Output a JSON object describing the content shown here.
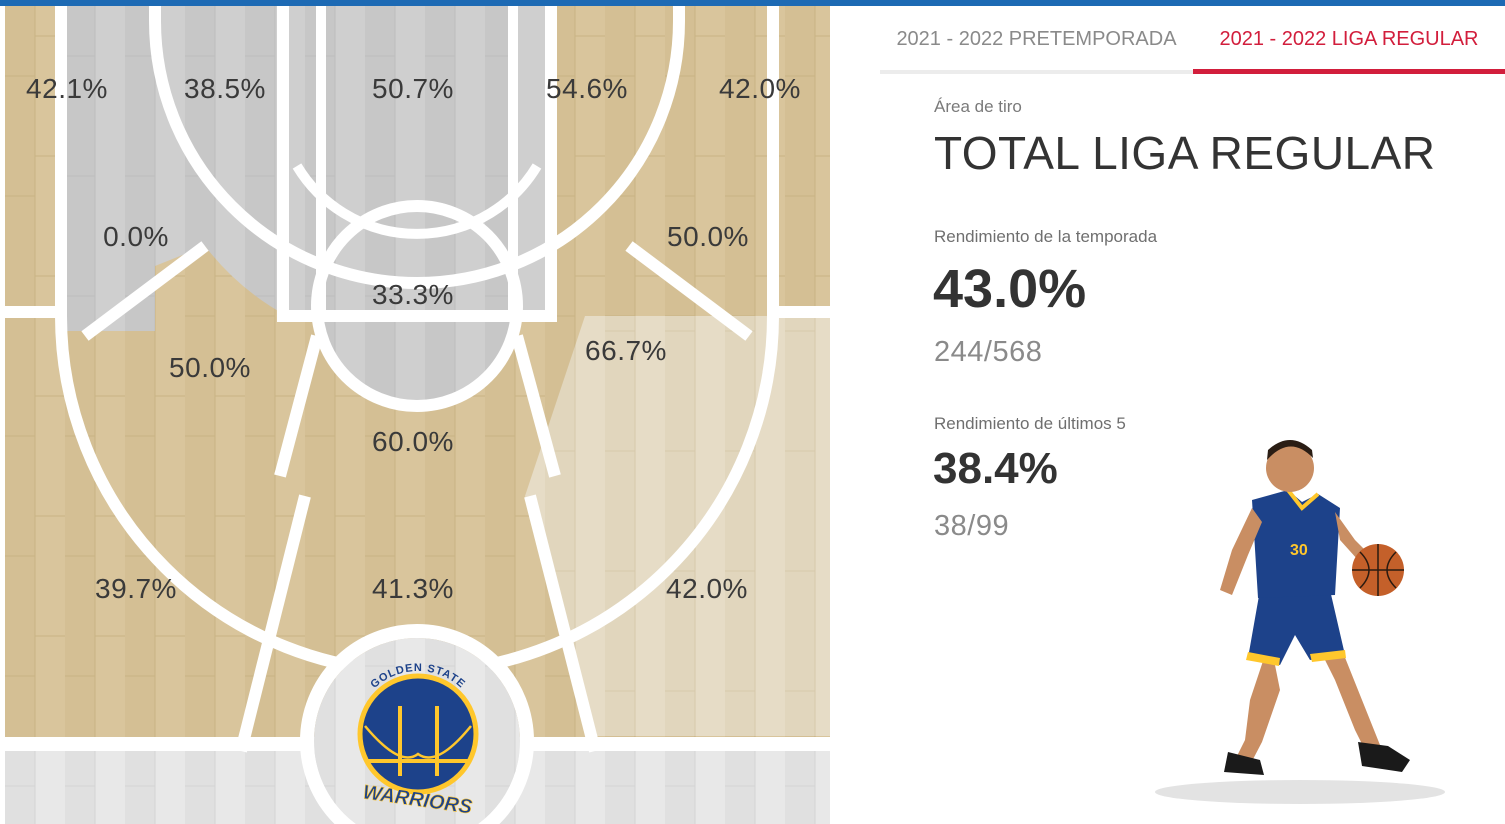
{
  "tabs": [
    {
      "label": "2021 - 2022 PRETEMPORADA",
      "active": false
    },
    {
      "label": "2021 - 2022 LIGA REGULAR",
      "active": true
    }
  ],
  "panel": {
    "area_label": "Área de tiro",
    "area_title": "TOTAL LIGA REGULAR",
    "season": {
      "label": "Rendimiento de la temporada",
      "pct": "43.0%",
      "ratio": "244/568"
    },
    "last5": {
      "label": "Rendimiento de últimos 5",
      "pct": "38.4%",
      "ratio": "38/99"
    }
  },
  "zones": [
    {
      "label": "42.1%"
    },
    {
      "label": "38.5%"
    },
    {
      "label": "50.7%"
    },
    {
      "label": "54.6%"
    },
    {
      "label": "42.0%"
    },
    {
      "label": "0.0%"
    },
    {
      "label": "50.0%"
    },
    {
      "label": "33.3%"
    },
    {
      "label": "50.0%"
    },
    {
      "label": "66.7%"
    },
    {
      "label": "60.0%"
    },
    {
      "label": "39.7%"
    },
    {
      "label": "41.3%"
    },
    {
      "label": "42.0%"
    }
  ],
  "logo": {
    "top_text": "GOLDEN STATE",
    "bottom_text": "WARRIORS"
  },
  "colors": {
    "accent_blue": "#1d6ab4",
    "tab_active": "#d21e3c",
    "wood_tan": "#d9c59c",
    "wood_light": "#e6dcc6",
    "zone_gray": "#cdcdcd",
    "warriors_blue": "#1d428a",
    "warriors_gold": "#ffc72c"
  }
}
